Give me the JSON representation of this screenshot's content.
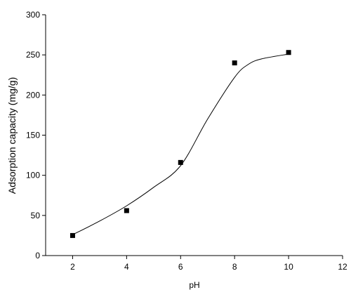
{
  "chart_data": {
    "type": "scatter",
    "x_label": "pH",
    "y_label": "Adsorption capacity (mg/g)",
    "xlim": [
      1,
      12
    ],
    "xticks": [
      2,
      4,
      6,
      8,
      10,
      12
    ],
    "ylim": [
      0,
      300
    ],
    "yticks": [
      0,
      50,
      100,
      150,
      200,
      250,
      300
    ],
    "series": [
      {
        "type": "scatter",
        "color": "#000000",
        "x": [
          2,
          4,
          6,
          8,
          10
        ],
        "values": [
          25,
          56,
          116,
          240,
          253
        ]
      },
      {
        "type": "line",
        "color": "#000000",
        "x": [
          2,
          3,
          4,
          5,
          6,
          7,
          8,
          8.5,
          9,
          10
        ],
        "values": [
          26,
          43,
          62,
          85,
          112,
          170,
          222,
          238,
          245,
          251
        ]
      }
    ]
  }
}
